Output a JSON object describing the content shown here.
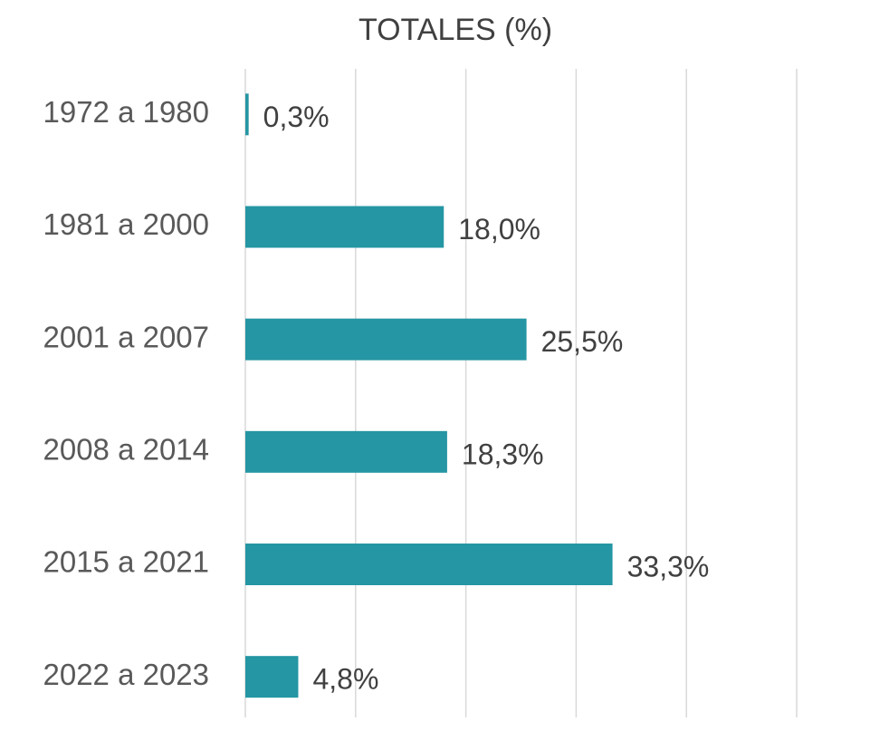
{
  "chart_data": {
    "type": "barh",
    "title": "TOTALES (%)",
    "categories": [
      "1972 a 1980",
      "1981 a 2000",
      "2001 a 2007",
      "2008 a 2014",
      "2015 a 2021",
      "2022 a 2023"
    ],
    "values": [
      0.3,
      18.0,
      25.5,
      18.3,
      33.3,
      4.8
    ],
    "value_labels": [
      "0,3%",
      "18,0%",
      "25,5%",
      "18,3%",
      "33,3%",
      "4,8%"
    ],
    "color": "#2596a3",
    "xlim": [
      0,
      50
    ],
    "xticks": [
      0,
      10,
      20,
      30,
      40,
      50
    ],
    "grid": true
  }
}
